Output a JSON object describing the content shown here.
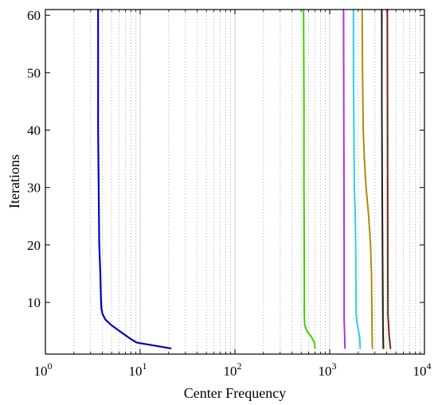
{
  "chart_data": {
    "type": "line",
    "xlabel": "Center Frequency",
    "ylabel": "Iterations",
    "xscale": "log",
    "xlim": [
      1,
      10000
    ],
    "ylim": [
      1,
      61
    ],
    "x_ticks": [
      {
        "value": 1,
        "base": "10",
        "exp": "0"
      },
      {
        "value": 10,
        "base": "10",
        "exp": "1"
      },
      {
        "value": 100,
        "base": "10",
        "exp": "2"
      },
      {
        "value": 1000,
        "base": "10",
        "exp": "3"
      },
      {
        "value": 10000,
        "base": "10",
        "exp": "4"
      }
    ],
    "y_ticks": [
      10,
      20,
      30,
      40,
      50,
      60
    ],
    "grid": "x-minor dotted",
    "series": [
      {
        "color": "#0000bb",
        "width": 2.2,
        "points": [
          [
            21,
            2
          ],
          [
            9.2,
            3
          ],
          [
            8,
            3.6
          ],
          [
            6.3,
            4.8
          ],
          [
            5,
            6
          ],
          [
            4.3,
            7
          ],
          [
            4.0,
            8
          ],
          [
            3.9,
            9
          ],
          [
            3.85,
            11
          ],
          [
            3.8,
            15
          ],
          [
            3.7,
            20
          ],
          [
            3.65,
            30
          ],
          [
            3.6,
            40
          ],
          [
            3.6,
            50
          ],
          [
            3.6,
            61
          ]
        ]
      },
      {
        "color": "#44cc00",
        "width": 2,
        "points": [
          [
            700,
            2
          ],
          [
            690,
            3
          ],
          [
            640,
            4
          ],
          [
            575,
            5
          ],
          [
            545,
            6
          ],
          [
            540,
            8
          ],
          [
            540,
            15
          ],
          [
            535,
            30
          ],
          [
            535,
            45
          ],
          [
            530,
            61
          ]
        ]
      },
      {
        "color": "#aa33ee",
        "width": 2,
        "points": [
          [
            1450,
            2
          ],
          [
            1440,
            4
          ],
          [
            1420,
            7
          ],
          [
            1420,
            20
          ],
          [
            1410,
            40
          ],
          [
            1400,
            61
          ]
        ]
      },
      {
        "color": "#33ccee",
        "width": 2,
        "points": [
          [
            2100,
            2
          ],
          [
            2070,
            4
          ],
          [
            1960,
            6
          ],
          [
            1900,
            8
          ],
          [
            1890,
            15
          ],
          [
            1880,
            20
          ],
          [
            1860,
            25
          ],
          [
            1820,
            30
          ],
          [
            1800,
            40
          ],
          [
            1780,
            50
          ],
          [
            1780,
            61
          ]
        ]
      },
      {
        "color": "#b8860b",
        "width": 2,
        "points": [
          [
            2820,
            2
          ],
          [
            2800,
            5
          ],
          [
            2780,
            10
          ],
          [
            2760,
            15
          ],
          [
            2700,
            20
          ],
          [
            2580,
            25
          ],
          [
            2420,
            30
          ],
          [
            2320,
            35
          ],
          [
            2260,
            40
          ],
          [
            2220,
            50
          ],
          [
            2200,
            61
          ]
        ]
      },
      {
        "color": "#f2b0b8",
        "width": 1.5,
        "points": [
          [
            3750,
            2
          ],
          [
            3700,
            5
          ],
          [
            3650,
            15
          ],
          [
            3600,
            30
          ],
          [
            3550,
            45
          ],
          [
            3500,
            61
          ]
        ]
      },
      {
        "color": "#222222",
        "width": 2,
        "points": [
          [
            3680,
            2
          ],
          [
            3650,
            5
          ],
          [
            3620,
            15
          ],
          [
            3580,
            30
          ],
          [
            3550,
            45
          ],
          [
            3550,
            61
          ]
        ]
      },
      {
        "color": "#7a2a10",
        "width": 2,
        "points": [
          [
            4380,
            2
          ],
          [
            4250,
            4
          ],
          [
            4120,
            8
          ],
          [
            4100,
            20
          ],
          [
            4080,
            40
          ],
          [
            4060,
            61
          ]
        ]
      }
    ]
  }
}
